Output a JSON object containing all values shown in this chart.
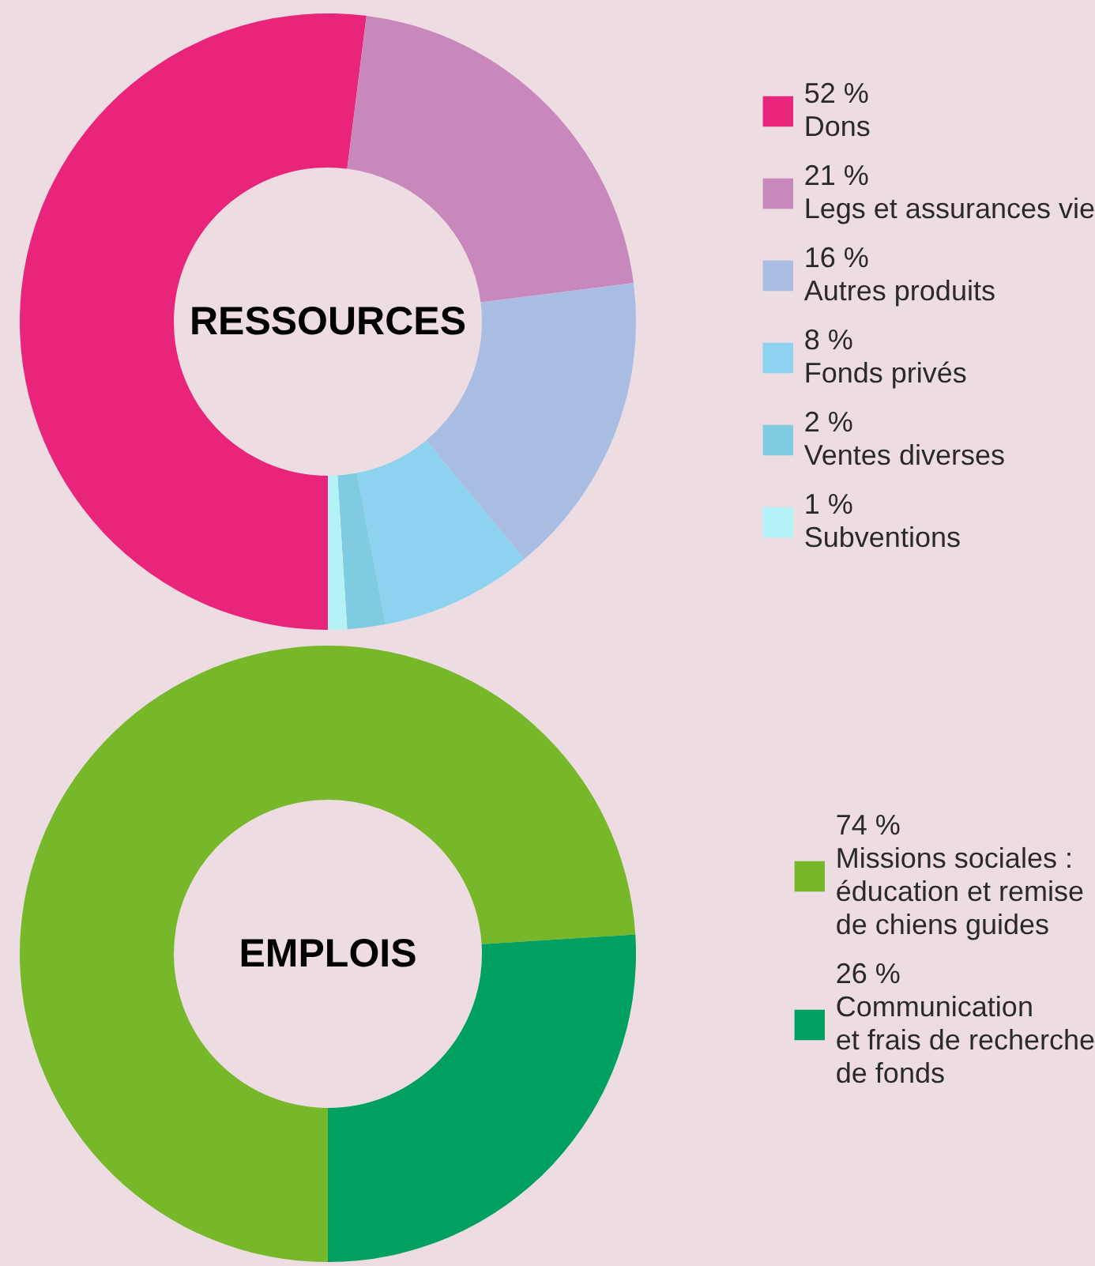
{
  "chart_data": [
    {
      "type": "donut",
      "title": "RESSOURCES",
      "legend": "right",
      "categories": [
        "Dons",
        "Legs et assurances vie",
        "Autres produits",
        "Fonds privés",
        "Ventes diverses",
        "Subventions"
      ],
      "values": [
        52,
        21,
        16,
        8,
        2,
        1
      ],
      "value_labels": [
        "52 %",
        "21 %",
        "16 %",
        "8 %",
        "2 %",
        "1 %"
      ],
      "colors": [
        "#e8257a",
        "#c888bb",
        "#a9bde3",
        "#8dd3f0",
        "#7fcbe0",
        "#b3f3f7"
      ]
    },
    {
      "type": "donut",
      "title": "EMPLOIS",
      "legend": "right",
      "categories": [
        "Missions sociales :\néducation et remise\nde chiens guides",
        "Communication\net frais de recherche\nde fonds"
      ],
      "values": [
        74,
        26
      ],
      "value_labels": [
        "74 %",
        "26 %"
      ],
      "colors": [
        "#76b82a",
        "#00a060"
      ]
    }
  ]
}
